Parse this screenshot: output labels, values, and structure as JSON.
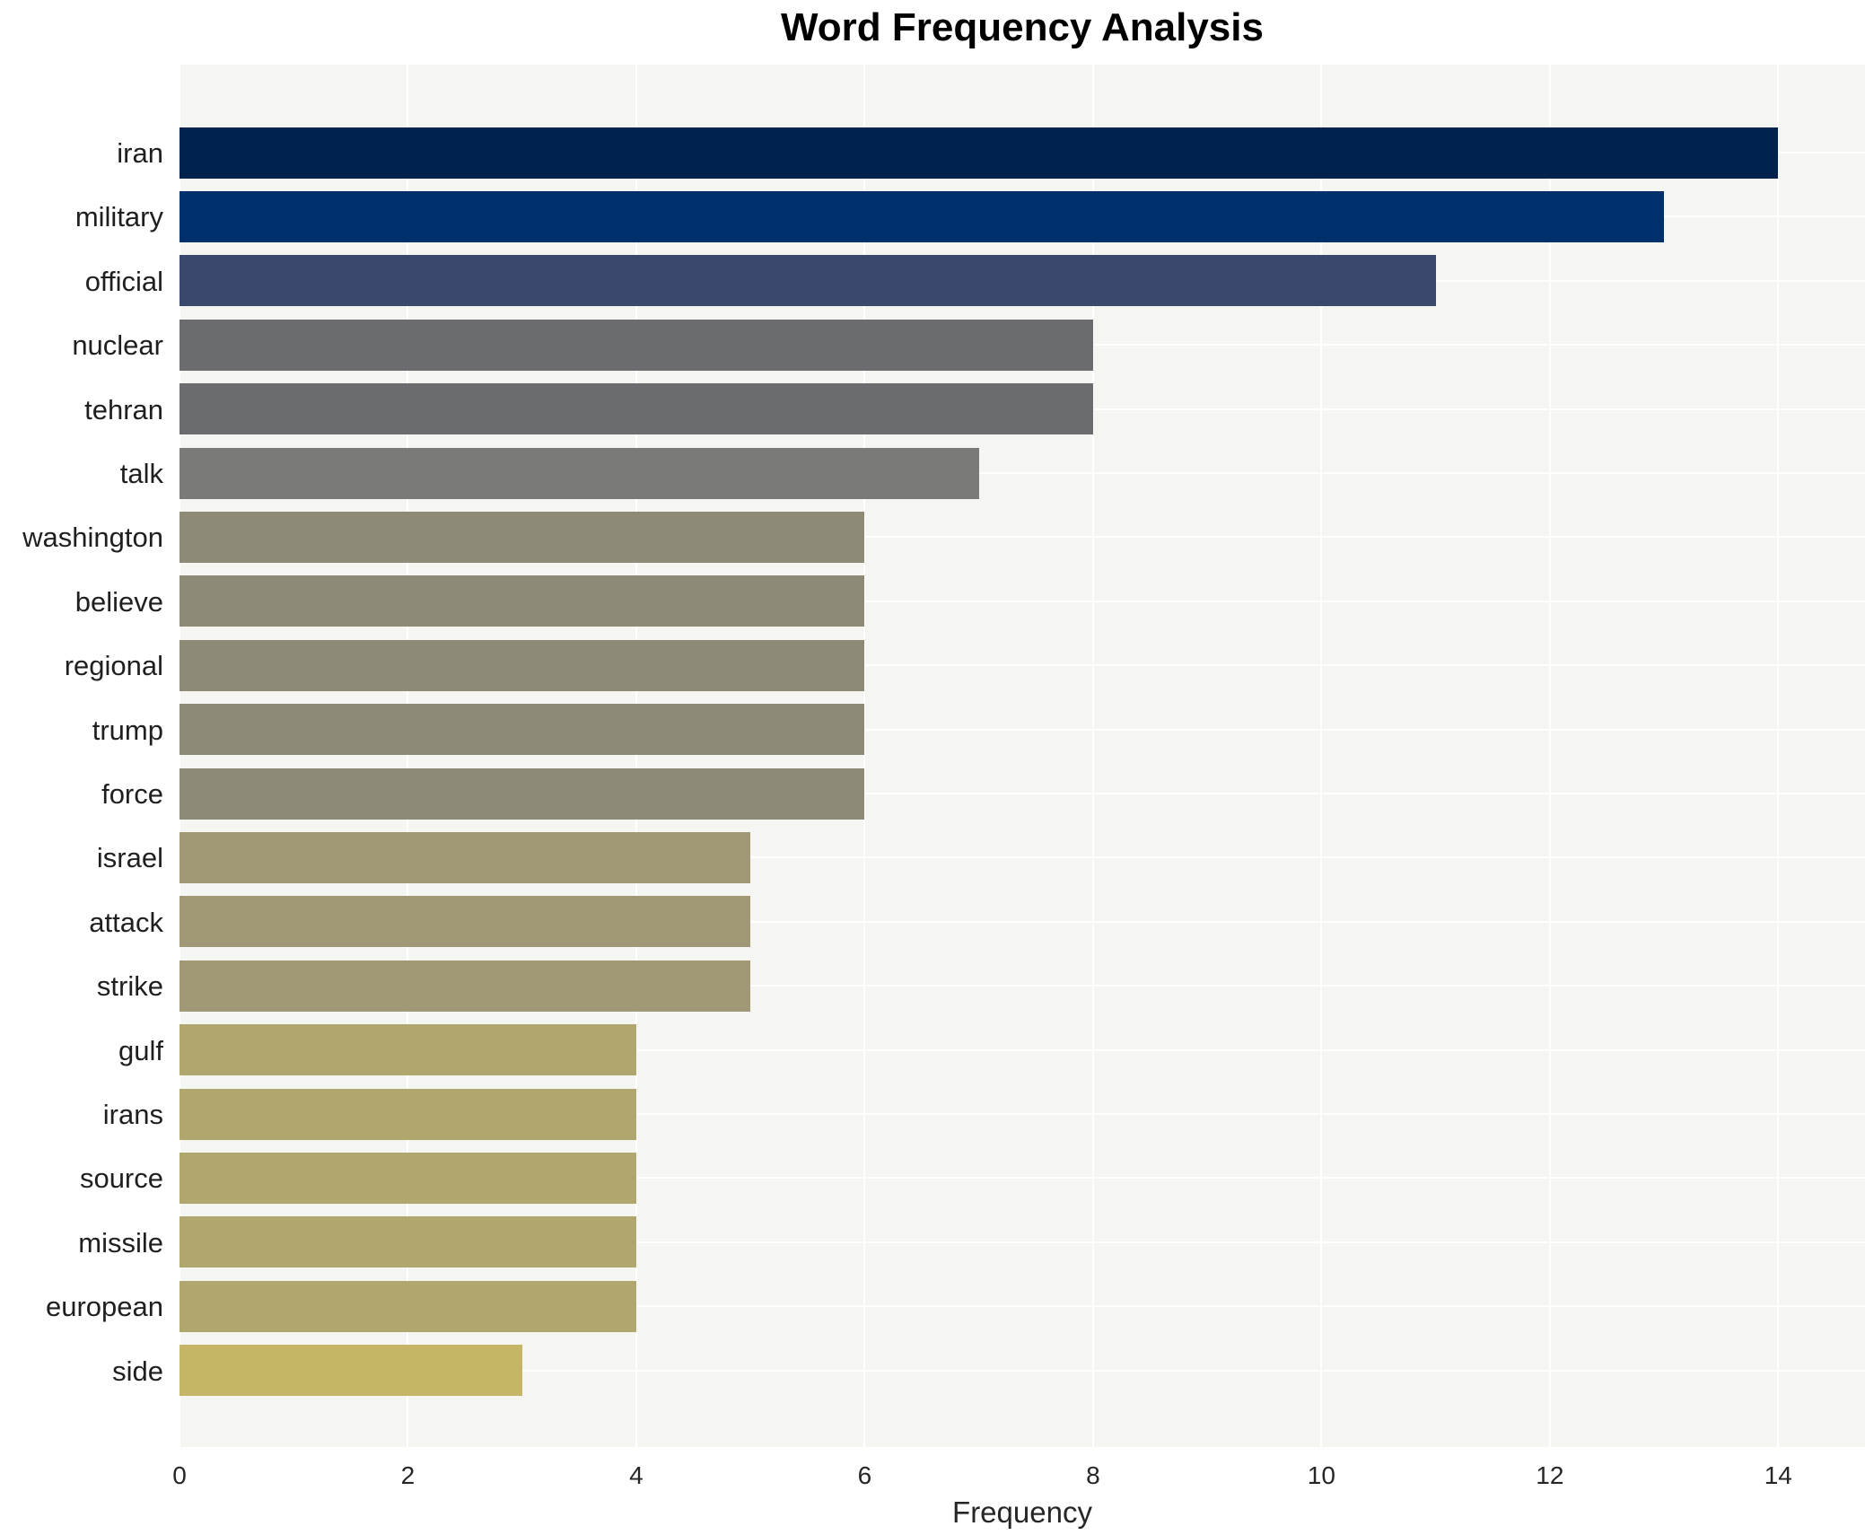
{
  "title": "Word Frequency Analysis",
  "chart_data": {
    "type": "bar",
    "orientation": "horizontal",
    "title": "Word Frequency Analysis",
    "xlabel": "Frequency",
    "ylabel": "",
    "xlim": [
      0,
      14.76
    ],
    "xticks": [
      0,
      2,
      4,
      6,
      8,
      10,
      12,
      14
    ],
    "grid": true,
    "legend": false,
    "plot_background": "#f5f5f2",
    "grid_color": "#ffffff",
    "label_color": "#1f1f1f",
    "categories": [
      "iran",
      "military",
      "official",
      "nuclear",
      "tehran",
      "talk",
      "washington",
      "believe",
      "regional",
      "trump",
      "force",
      "israel",
      "attack",
      "strike",
      "gulf",
      "irans",
      "source",
      "missile",
      "european",
      "side"
    ],
    "values": [
      14,
      13,
      11,
      8,
      8,
      7,
      6,
      6,
      6,
      6,
      6,
      5,
      5,
      5,
      4,
      4,
      4,
      4,
      4,
      3
    ],
    "bar_colors": [
      "#00234e",
      "#00306b",
      "#3a486b",
      "#6b6c70",
      "#6b6c70",
      "#7a7b77",
      "#8e8a78",
      "#8e8a78",
      "#8e8a78",
      "#8e8a78",
      "#8e8a78",
      "#a19876",
      "#a19876",
      "#a19876",
      "#b0a76e",
      "#b0a76e",
      "#b0a76e",
      "#b0a76e",
      "#b0a76e",
      "#c4b567"
    ]
  }
}
